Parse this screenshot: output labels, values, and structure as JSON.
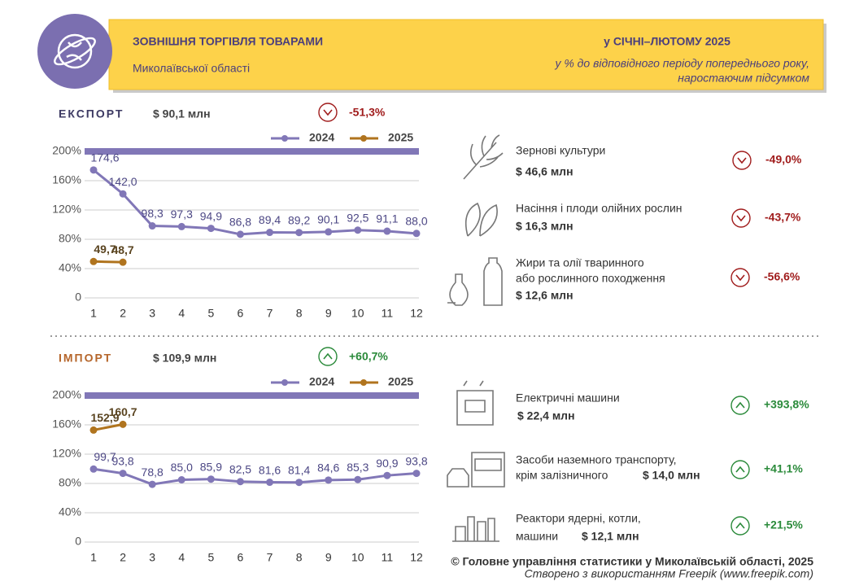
{
  "header": {
    "title": "ЗОВНІШНЯ ТОРГІВЛЯ ТОВАРАМИ",
    "subtitle": "Миколаївської області",
    "period": "у СІЧНІ–ЛЮТОМУ 2025",
    "note_lines": [
      "у % до відповідного періоду попереднього року,",
      "наростаючим підсумком"
    ]
  },
  "chart_data": [
    {
      "type": "line",
      "title": "ЕКСПОРТ",
      "title_color": "#3d3a63",
      "total": "$ 90,1 млн",
      "change": "-51,3%",
      "trend": "down",
      "x": [
        1,
        2,
        3,
        4,
        5,
        6,
        7,
        8,
        9,
        10,
        11,
        12
      ],
      "xlim": [
        1,
        12
      ],
      "xticks": [
        1,
        2,
        3,
        4,
        5,
        6,
        7,
        8,
        9,
        10,
        11,
        12
      ],
      "ylim": [
        0,
        200
      ],
      "yticks": [
        0,
        {
          "value": 40,
          "label": "40%"
        },
        {
          "value": 80,
          "label": "80%"
        },
        {
          "value": 120,
          "label": "120%"
        },
        {
          "value": 160,
          "label": "160%"
        },
        {
          "value": 200,
          "label": "200%"
        }
      ],
      "grid": true,
      "series": [
        {
          "name": "2024",
          "color": "#8177b7",
          "values": [
            174.6,
            142.0,
            98.3,
            97.3,
            94.9,
            86.8,
            89.4,
            89.2,
            90.1,
            92.5,
            91.1,
            88.0
          ],
          "value_labels": [
            "174,6",
            "142,0",
            "98,3",
            "97,3",
            "94,9",
            "86,8",
            "89,4",
            "89,2",
            "90,1",
            "92,5",
            "91,1",
            "88,0"
          ]
        },
        {
          "name": "2025",
          "color": "#b0741e",
          "values": [
            49.7,
            48.7,
            null,
            null,
            null,
            null,
            null,
            null,
            null,
            null,
            null,
            null
          ],
          "value_labels": [
            "49,7",
            "48,7",
            null,
            null,
            null,
            null,
            null,
            null,
            null,
            null,
            null,
            null
          ]
        }
      ],
      "items": [
        {
          "name_lines": [
            "Зернові культури"
          ],
          "amount": "$ 46,6 млн",
          "change": "-49,0%",
          "trend": "down"
        },
        {
          "name_lines": [
            "Насіння і плоди олійних рослин"
          ],
          "amount": "$ 16,3 млн",
          "change": "-43,7%",
          "trend": "down"
        },
        {
          "name_lines": [
            "Жири та олії тваринного",
            "або рослинного походження"
          ],
          "amount": "$ 12,6 млн",
          "change": "-56,6%",
          "trend": "down"
        }
      ]
    },
    {
      "type": "line",
      "title": "ІМПОРТ",
      "title_color": "#b5652a",
      "total": "$ 109,9 млн",
      "change": "+60,7%",
      "trend": "up",
      "x": [
        1,
        2,
        3,
        4,
        5,
        6,
        7,
        8,
        9,
        10,
        11,
        12
      ],
      "xlim": [
        1,
        12
      ],
      "xticks": [
        1,
        2,
        3,
        4,
        5,
        6,
        7,
        8,
        9,
        10,
        11,
        12
      ],
      "ylim": [
        0,
        200
      ],
      "yticks": [
        0,
        {
          "value": 40,
          "label": "40%"
        },
        {
          "value": 80,
          "label": "80%"
        },
        {
          "value": 120,
          "label": "120%"
        },
        {
          "value": 160,
          "label": "160%"
        },
        {
          "value": 200,
          "label": "200%"
        }
      ],
      "grid": true,
      "series": [
        {
          "name": "2024",
          "color": "#8177b7",
          "values": [
            99.7,
            93.8,
            78.8,
            85.0,
            85.9,
            82.5,
            81.6,
            81.4,
            84.6,
            85.3,
            90.9,
            93.8
          ],
          "value_labels": [
            "99,7",
            "93,8",
            "78,8",
            "85,0",
            "85,9",
            "82,5",
            "81,6",
            "81,4",
            "84,6",
            "85,3",
            "90,9",
            "93,8"
          ]
        },
        {
          "name": "2025",
          "color": "#b0741e",
          "values": [
            152.9,
            160.7,
            null,
            null,
            null,
            null,
            null,
            null,
            null,
            null,
            null,
            null
          ],
          "value_labels": [
            "152,9",
            "160,7",
            null,
            null,
            null,
            null,
            null,
            null,
            null,
            null,
            null,
            null
          ]
        }
      ],
      "items": [
        {
          "name_lines": [
            "Електричні машини"
          ],
          "amount": "$ 22,4 млн",
          "change": "+393,8%",
          "trend": "up"
        },
        {
          "name_lines": [
            "Засоби наземного транспорту,",
            "крім залізничного"
          ],
          "amount": "$ 14,0 млн",
          "change": "+41,1%",
          "trend": "up"
        },
        {
          "name_lines": [
            "Реактори ядерні, котли,",
            "машини"
          ],
          "amount": "$ 12,1 млн",
          "change": "+21,5%",
          "trend": "up"
        }
      ]
    }
  ],
  "footer": {
    "copyright": "© Головне управління статистики у Миколаївській області, 2025",
    "credit": "Створено з використанням Freepik (www.freepik.com)"
  }
}
